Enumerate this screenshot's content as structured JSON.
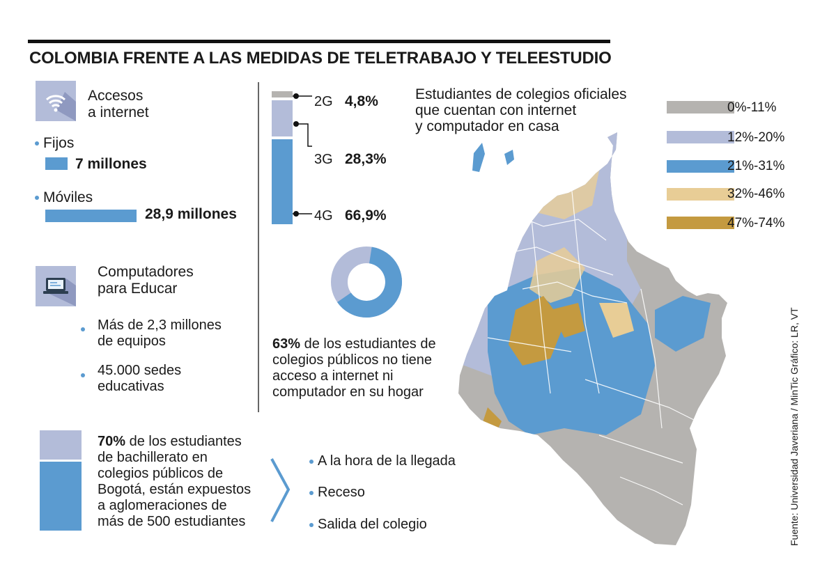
{
  "title": "COLOMBIA FRENTE A LAS MEDIDAS DE TELETRABAJO Y TELEESTUDIO",
  "internet": {
    "heading_line1": "Accesos",
    "heading_line2": "a internet",
    "fijos_label": "Fijos",
    "fijos_value": "7 millones",
    "moviles_label": "Móviles",
    "moviles_value": "28,9 millones"
  },
  "computadores": {
    "heading_line1": "Computadores",
    "heading_line2": "para Educar",
    "item1_line1": "Más de 2,3 millones",
    "item1_line2": "de equipos",
    "item2_line1": "45.000 sedes",
    "item2_line2": "educativas"
  },
  "bogota": {
    "pct": "70%",
    "line1_rest": " de los estudiantes",
    "line2": "de bachillerato en",
    "line3": "colegios públicos de",
    "line4": "Bogotá, están expuestos",
    "line5": "a aglomeraciones de",
    "line6": "más de 500 estudiantes",
    "moments": [
      "A la hora de la llegada",
      "Receso",
      "Salida del colegio"
    ]
  },
  "donut": {
    "pct": "63%",
    "line1_rest": " de los estudiantes de",
    "line2": "colegios públicos no tiene",
    "line3": "acceso a internet ni",
    "line4": "computador en su hogar"
  },
  "map": {
    "title_line1": "Estudiantes de colegios oficiales",
    "title_line2": "que cuentan con internet",
    "title_line3": "y computador en casa"
  },
  "source": "Fuente: Universidad Javeriana / MinTic  Gráfico: LR, VT",
  "colors": {
    "blue": "#5b9bd0",
    "lavender": "#b3bcd9",
    "gray": "#b5b3b0",
    "sand": "#e8cd96",
    "gold": "#c49a40"
  },
  "chart_data": [
    {
      "type": "bar",
      "categories": [
        "Fijos",
        "Móviles"
      ],
      "values": [
        7,
        28.9
      ],
      "labels": [
        "7 millones",
        "28,9 millones"
      ]
    },
    {
      "type": "bar",
      "stacked": true,
      "categories": [
        "2G",
        "3G",
        "4G"
      ],
      "values": [
        4.8,
        28.3,
        66.9
      ],
      "labels": [
        "4,8%",
        "28,3%",
        "66,9%"
      ],
      "colors": [
        "#b5b3b0",
        "#b3bcd9",
        "#5b9bd0"
      ]
    },
    {
      "type": "pie",
      "donut": true,
      "values": [
        63,
        37
      ],
      "colors": [
        "#5b9bd0",
        "#b3bcd9"
      ],
      "label": "63%"
    },
    {
      "type": "bar",
      "stacked": true,
      "values": [
        70,
        30
      ],
      "colors": [
        "#5b9bd0",
        "#b3bcd9"
      ],
      "label": "70%"
    },
    {
      "type": "heatmap",
      "legend": [
        "0%-11%",
        "12%-20%",
        "21%-31%",
        "32%-46%",
        "47%-74%"
      ],
      "legend_colors": [
        "#b5b3b0",
        "#b3bcd9",
        "#5b9bd0",
        "#e8cd96",
        "#c49a40"
      ]
    }
  ]
}
